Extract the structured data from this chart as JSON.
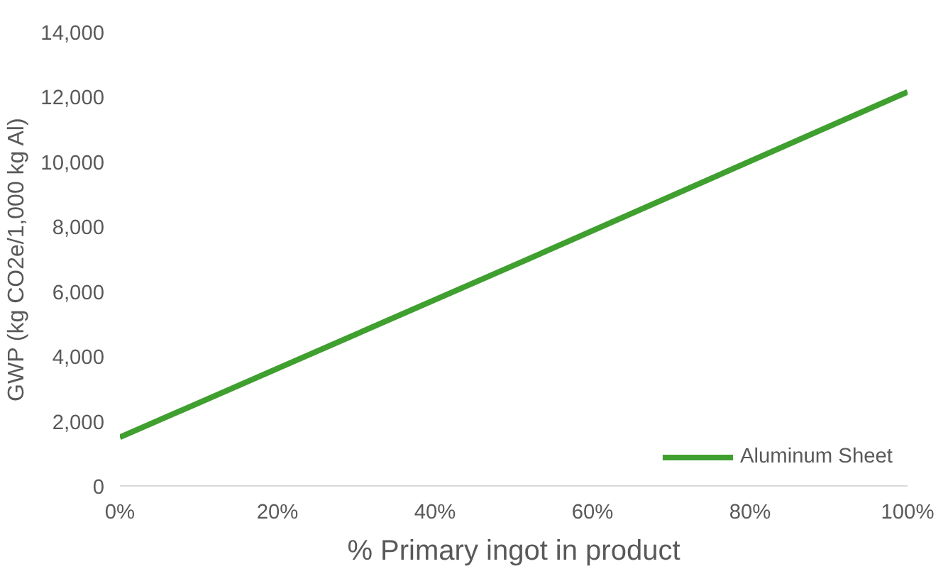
{
  "chart_data": {
    "type": "line",
    "xlabel": "% Primary ingot in product",
    "ylabel": "GWP (kg CO2e/1,000 kg Al)",
    "x": [
      0,
      50,
      100
    ],
    "series": [
      {
        "name": "Aluminum Sheet",
        "color": "#3f9f2f",
        "values": [
          1500,
          6800,
          12150
        ]
      }
    ],
    "xlim": [
      0,
      100
    ],
    "ylim": [
      0,
      14000
    ],
    "xticks": [
      {
        "value": 0,
        "label": "0%"
      },
      {
        "value": 20,
        "label": "20%"
      },
      {
        "value": 40,
        "label": "40%"
      },
      {
        "value": 60,
        "label": "60%"
      },
      {
        "value": 80,
        "label": "80%"
      },
      {
        "value": 100,
        "label": "100%"
      }
    ],
    "yticks": [
      {
        "value": 0,
        "label": "0"
      },
      {
        "value": 2000,
        "label": "2,000"
      },
      {
        "value": 4000,
        "label": "4,000"
      },
      {
        "value": 6000,
        "label": "6,000"
      },
      {
        "value": 8000,
        "label": "8,000"
      },
      {
        "value": 10000,
        "label": "10,000"
      },
      {
        "value": 12000,
        "label": "12,000"
      },
      {
        "value": 14000,
        "label": "14,000"
      }
    ],
    "grid": false,
    "legend": "bottom right",
    "line_style": "solid",
    "marker": "none"
  }
}
